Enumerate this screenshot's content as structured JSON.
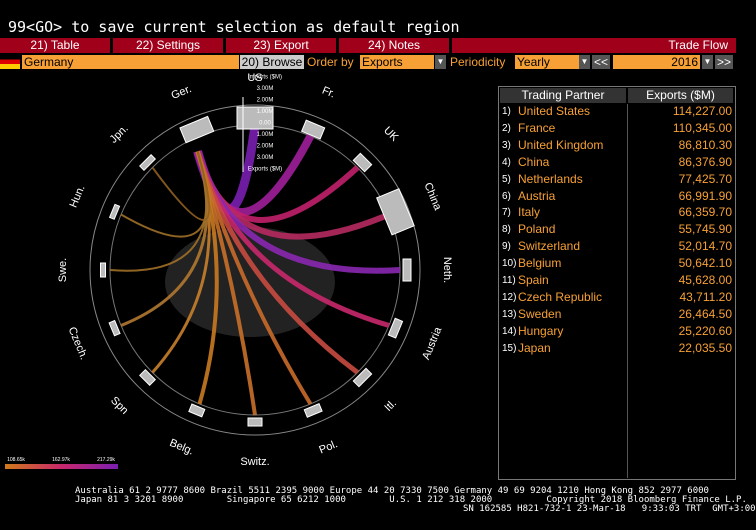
{
  "command": "99<GO> to save current selection as default region",
  "tabs": [
    "21) Table",
    "22) Settings",
    "23) Export",
    "24) Notes"
  ],
  "screen_title": "Trade Flow",
  "toolbar": {
    "country": "Germany",
    "browse": "20) Browse",
    "order_label": "Order by",
    "order_value": "Exports",
    "periodicity_label": "Periodicity",
    "periodicity_value": "Yearly",
    "prev": "<<",
    "year": "2016",
    "next": ">>"
  },
  "ring": {
    "labels": [
      "US",
      "Fr.",
      "UK",
      "China",
      "Neth.",
      "Austria",
      "Itl.",
      "Pol.",
      "Switz.",
      "Belg.",
      "Spn",
      "Czech.",
      "Swe.",
      "Hun.",
      "Jpn.",
      "Ger."
    ],
    "axis_labels": [
      "Imports ($M)",
      "3.00M",
      "2.00M",
      "1.00M",
      "0.00",
      "1.00M",
      "2.00M",
      "3.00M",
      "Exports ($M)"
    ],
    "legend": [
      "108.65k",
      "162.97k",
      "217.29k"
    ]
  },
  "table": {
    "header": [
      "Trading Partner",
      "Exports ($M)"
    ],
    "rows": [
      [
        "1)",
        "United States",
        "114,227.00"
      ],
      [
        "2)",
        "France",
        "110,345.00"
      ],
      [
        "3)",
        "United Kingdom",
        "86,810.30"
      ],
      [
        "4)",
        "China",
        "86,376.90"
      ],
      [
        "5)",
        "Netherlands",
        "77,425.70"
      ],
      [
        "6)",
        "Austria",
        "66,991.90"
      ],
      [
        "7)",
        "Italy",
        "66,359.70"
      ],
      [
        "8)",
        "Poland",
        "55,745.90"
      ],
      [
        "9)",
        "Switzerland",
        "52,014.70"
      ],
      [
        "10)",
        "Belgium",
        "50,642.10"
      ],
      [
        "11)",
        "Spain",
        "45,628.00"
      ],
      [
        "12)",
        "Czech Republic",
        "43,711.20"
      ],
      [
        "13)",
        "Sweden",
        "26,464.50"
      ],
      [
        "14)",
        "Hungary",
        "25,220.60"
      ],
      [
        "15)",
        "Japan",
        "22,035.50"
      ]
    ]
  },
  "footer": [
    "Australia 61 2 9777 8600 Brazil 5511 2395 9000 Europe 44 20 7330 7500 Germany 49 69 9204 1210 Hong Kong 852 2977 6000",
    "Japan 81 3 3201 8900        Singapore 65 6212 1000        U.S. 1 212 318 2000          Copyright 2018 Bloomberg Finance L.P.",
    "SN 162585 H821-732-1 23-Mar-18   9:33:03 TRT  GMT+3:00"
  ]
}
